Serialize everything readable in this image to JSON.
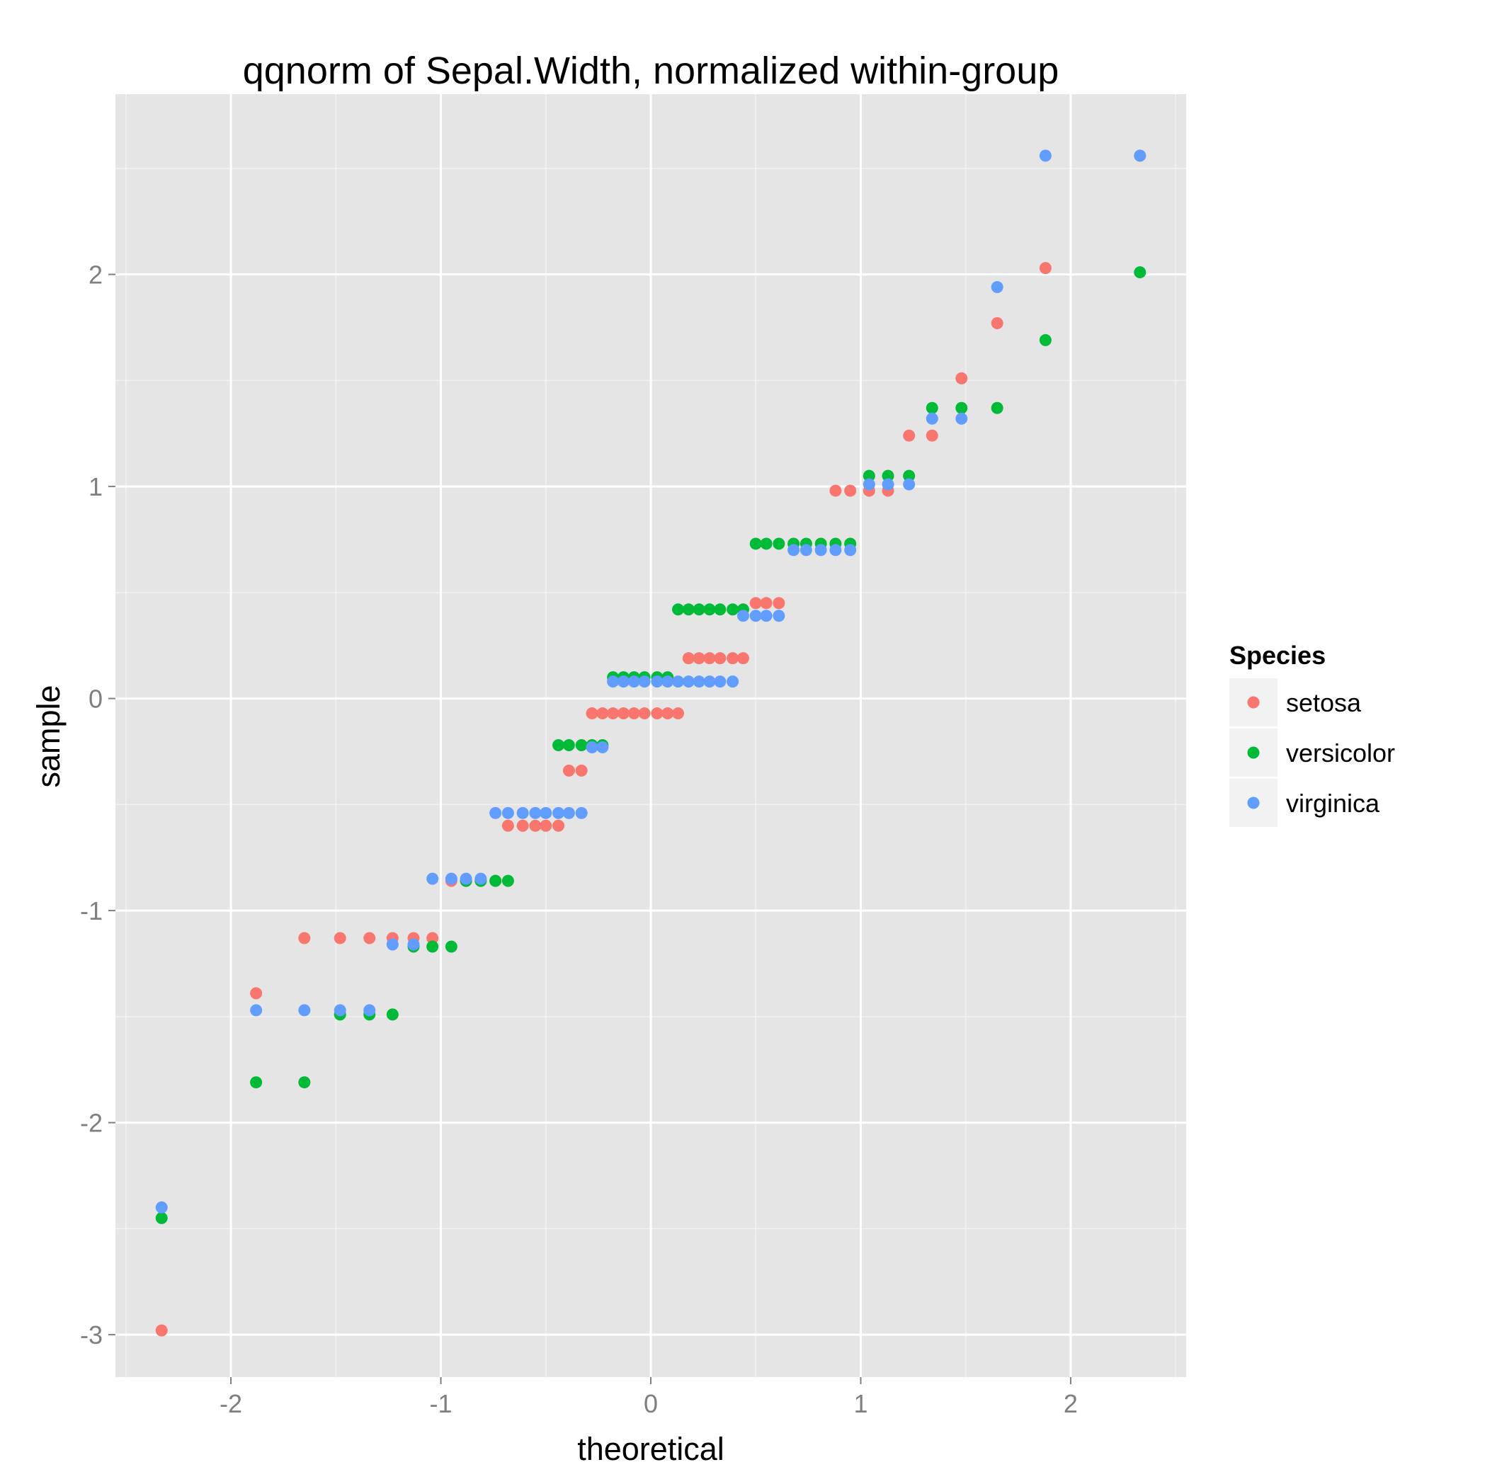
{
  "chart_data": {
    "type": "scatter",
    "title": "qqnorm of Sepal.Width, normalized within-group",
    "xlabel": "theoretical",
    "ylabel": "sample",
    "xlim": [
      -2.55,
      2.55
    ],
    "ylim": [
      -3.2,
      2.85
    ],
    "xticks": [
      -2,
      -1,
      0,
      1,
      2
    ],
    "yticks": [
      -3,
      -2,
      -1,
      0,
      1,
      2
    ],
    "xtick_labels": [
      "-2",
      "-1",
      "0",
      "1",
      "2"
    ],
    "ytick_labels": [
      "-3",
      "-2",
      "-1",
      "0",
      "1",
      "2"
    ],
    "grid": true,
    "legend": {
      "title": "Species",
      "position": "right",
      "entries": [
        "setosa",
        "versicolor",
        "virginica"
      ]
    },
    "colors": {
      "panel_background": "#e5e5e5",
      "grid_major": "#ffffff",
      "grid_minor": "#f2f2f2",
      "legend_key_background": "#f2f2f2"
    },
    "series": [
      {
        "name": "setosa",
        "color": "#f8766d",
        "points": [
          [
            -2.33,
            -2.98
          ],
          [
            -1.88,
            -1.39
          ],
          [
            -1.65,
            -1.13
          ],
          [
            -1.48,
            -1.13
          ],
          [
            -1.34,
            -1.13
          ],
          [
            -1.23,
            -1.13
          ],
          [
            -1.13,
            -1.13
          ],
          [
            -1.04,
            -1.13
          ],
          [
            -0.95,
            -0.86
          ],
          [
            -0.88,
            -0.86
          ],
          [
            -0.81,
            -0.86
          ],
          [
            -0.74,
            -0.86
          ],
          [
            -0.68,
            -0.6
          ],
          [
            -0.61,
            -0.6
          ],
          [
            -0.55,
            -0.6
          ],
          [
            -0.5,
            -0.6
          ],
          [
            -0.44,
            -0.6
          ],
          [
            -0.39,
            -0.34
          ],
          [
            -0.33,
            -0.34
          ],
          [
            -0.28,
            -0.07
          ],
          [
            -0.23,
            -0.07
          ],
          [
            -0.18,
            -0.07
          ],
          [
            -0.13,
            -0.07
          ],
          [
            -0.08,
            -0.07
          ],
          [
            -0.03,
            -0.07
          ],
          [
            0.03,
            -0.07
          ],
          [
            0.08,
            -0.07
          ],
          [
            0.13,
            -0.07
          ],
          [
            0.18,
            0.19
          ],
          [
            0.23,
            0.19
          ],
          [
            0.28,
            0.19
          ],
          [
            0.33,
            0.19
          ],
          [
            0.39,
            0.19
          ],
          [
            0.44,
            0.19
          ],
          [
            0.5,
            0.45
          ],
          [
            0.55,
            0.45
          ],
          [
            0.61,
            0.45
          ],
          [
            0.88,
            0.98
          ],
          [
            0.95,
            0.98
          ],
          [
            1.04,
            0.98
          ],
          [
            1.13,
            0.98
          ],
          [
            1.23,
            1.24
          ],
          [
            1.34,
            1.24
          ],
          [
            1.48,
            1.51
          ],
          [
            1.65,
            1.77
          ],
          [
            1.88,
            2.03
          ],
          [
            2.33,
            2.56
          ]
        ]
      },
      {
        "name": "versicolor",
        "color": "#00ba38",
        "points": [
          [
            -2.33,
            -2.45
          ],
          [
            -1.88,
            -1.81
          ],
          [
            -1.65,
            -1.81
          ],
          [
            -1.48,
            -1.49
          ],
          [
            -1.34,
            -1.49
          ],
          [
            -1.23,
            -1.49
          ],
          [
            -1.13,
            -1.17
          ],
          [
            -1.04,
            -1.17
          ],
          [
            -0.95,
            -1.17
          ],
          [
            -0.88,
            -0.86
          ],
          [
            -0.81,
            -0.86
          ],
          [
            -0.74,
            -0.86
          ],
          [
            -0.68,
            -0.86
          ],
          [
            -0.44,
            -0.22
          ],
          [
            -0.39,
            -0.22
          ],
          [
            -0.33,
            -0.22
          ],
          [
            -0.28,
            -0.22
          ],
          [
            -0.23,
            -0.22
          ],
          [
            -0.18,
            0.1
          ],
          [
            -0.13,
            0.1
          ],
          [
            -0.08,
            0.1
          ],
          [
            -0.03,
            0.1
          ],
          [
            0.03,
            0.1
          ],
          [
            0.08,
            0.1
          ],
          [
            0.13,
            0.42
          ],
          [
            0.18,
            0.42
          ],
          [
            0.23,
            0.42
          ],
          [
            0.28,
            0.42
          ],
          [
            0.33,
            0.42
          ],
          [
            0.39,
            0.42
          ],
          [
            0.44,
            0.42
          ],
          [
            0.5,
            0.73
          ],
          [
            0.55,
            0.73
          ],
          [
            0.61,
            0.73
          ],
          [
            0.68,
            0.73
          ],
          [
            0.74,
            0.73
          ],
          [
            0.81,
            0.73
          ],
          [
            0.88,
            0.73
          ],
          [
            0.95,
            0.73
          ],
          [
            1.04,
            1.05
          ],
          [
            1.13,
            1.05
          ],
          [
            1.23,
            1.05
          ],
          [
            1.34,
            1.37
          ],
          [
            1.48,
            1.37
          ],
          [
            1.65,
            1.37
          ],
          [
            1.88,
            1.69
          ],
          [
            2.33,
            2.01
          ]
        ]
      },
      {
        "name": "virginica",
        "color": "#619cff",
        "points": [
          [
            -2.33,
            -2.4
          ],
          [
            -1.88,
            -1.47
          ],
          [
            -1.65,
            -1.47
          ],
          [
            -1.48,
            -1.47
          ],
          [
            -1.34,
            -1.47
          ],
          [
            -1.23,
            -1.16
          ],
          [
            -1.13,
            -1.16
          ],
          [
            -1.04,
            -0.85
          ],
          [
            -0.95,
            -0.85
          ],
          [
            -0.88,
            -0.85
          ],
          [
            -0.81,
            -0.85
          ],
          [
            -0.74,
            -0.54
          ],
          [
            -0.68,
            -0.54
          ],
          [
            -0.61,
            -0.54
          ],
          [
            -0.55,
            -0.54
          ],
          [
            -0.5,
            -0.54
          ],
          [
            -0.44,
            -0.54
          ],
          [
            -0.39,
            -0.54
          ],
          [
            -0.33,
            -0.54
          ],
          [
            -0.28,
            -0.23
          ],
          [
            -0.23,
            -0.23
          ],
          [
            -0.18,
            0.08
          ],
          [
            -0.13,
            0.08
          ],
          [
            -0.08,
            0.08
          ],
          [
            -0.03,
            0.08
          ],
          [
            0.03,
            0.08
          ],
          [
            0.08,
            0.08
          ],
          [
            0.13,
            0.08
          ],
          [
            0.18,
            0.08
          ],
          [
            0.23,
            0.08
          ],
          [
            0.28,
            0.08
          ],
          [
            0.33,
            0.08
          ],
          [
            0.39,
            0.08
          ],
          [
            0.44,
            0.39
          ],
          [
            0.5,
            0.39
          ],
          [
            0.55,
            0.39
          ],
          [
            0.61,
            0.39
          ],
          [
            0.68,
            0.7
          ],
          [
            0.74,
            0.7
          ],
          [
            0.81,
            0.7
          ],
          [
            0.88,
            0.7
          ],
          [
            0.95,
            0.7
          ],
          [
            1.04,
            1.01
          ],
          [
            1.13,
            1.01
          ],
          [
            1.23,
            1.01
          ],
          [
            1.34,
            1.32
          ],
          [
            1.48,
            1.32
          ],
          [
            1.65,
            1.94
          ],
          [
            1.88,
            2.56
          ],
          [
            2.33,
            2.56
          ]
        ]
      }
    ]
  }
}
